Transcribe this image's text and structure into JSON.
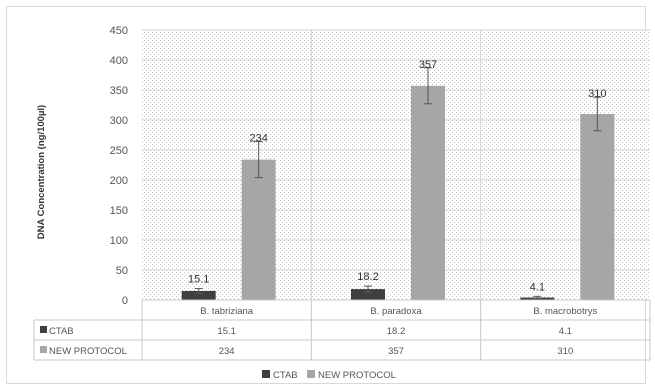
{
  "chart_data": {
    "type": "bar",
    "title": "",
    "ylabel": "DNA Concentration (ng/100µl)",
    "xlabel": "",
    "ylim": [
      0,
      450
    ],
    "yticks": [
      0,
      50,
      100,
      150,
      200,
      250,
      300,
      350,
      400,
      450
    ],
    "categories": [
      "B. tabriziana",
      "B. paradoxa",
      "B. macrobotrys"
    ],
    "series": [
      {
        "name": "CTAB",
        "values": [
          15.1,
          18.2,
          4.1
        ],
        "errors": [
          4,
          5,
          2
        ],
        "labels": [
          "15.1",
          "18.2",
          "4.1"
        ],
        "table": [
          "15.1",
          "18.2",
          "4.1"
        ],
        "color": "#3f3f3f"
      },
      {
        "name": "NEW PROTOCOL",
        "values": [
          234,
          357,
          310
        ],
        "errors": [
          30,
          30,
          28
        ],
        "labels": [
          "234",
          "357",
          "310"
        ],
        "table": [
          "234",
          "357",
          "310"
        ],
        "color": "#a6a6a6"
      }
    ],
    "grid": true,
    "data_table": true,
    "legend": "bottom"
  }
}
